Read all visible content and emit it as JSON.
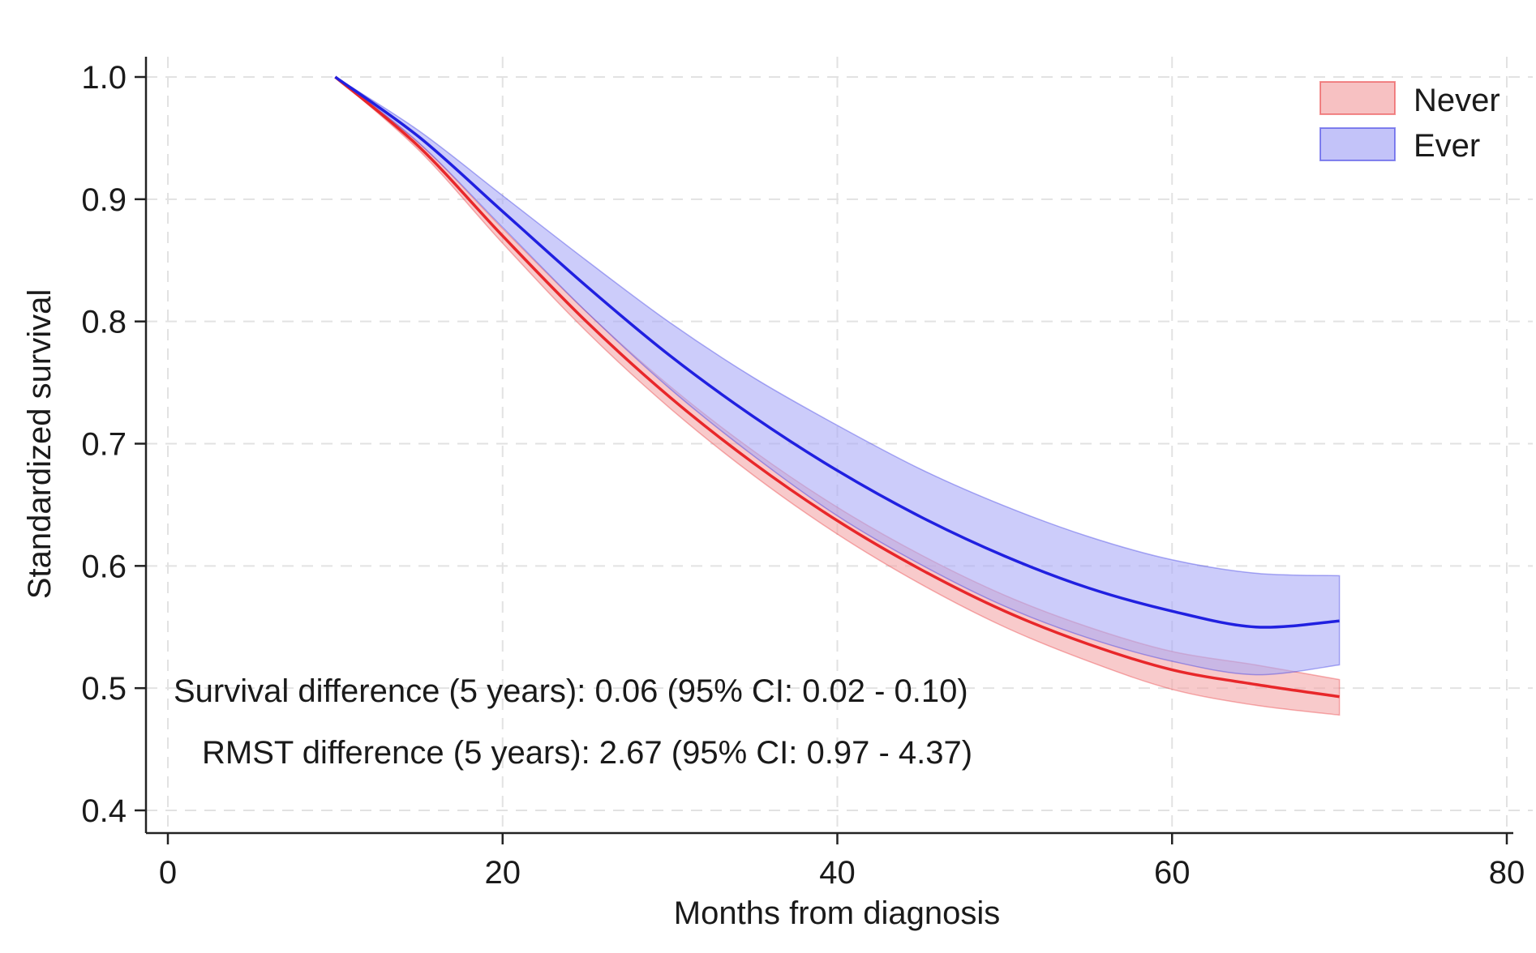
{
  "chart_data": {
    "type": "line",
    "title": "",
    "xlabel": "Months from diagnosis",
    "ylabel": "Standardized survival",
    "xlim": [
      0,
      80
    ],
    "ylim": [
      0.4,
      1.0
    ],
    "xticks": [
      0,
      20,
      40,
      60,
      80
    ],
    "yticks": [
      0.4,
      0.5,
      0.6,
      0.7,
      0.8,
      0.9,
      1.0
    ],
    "xtick_labels": [
      "0",
      "20",
      "40",
      "60",
      "80"
    ],
    "ytick_labels": [
      "0.4",
      "0.5",
      "0.6",
      "0.7",
      "0.8",
      "0.9",
      "1.0"
    ],
    "grid": true,
    "legend_position": "top-right",
    "x": [
      10,
      15,
      20,
      25,
      30,
      35,
      40,
      45,
      50,
      55,
      60,
      65,
      70
    ],
    "series": [
      {
        "name": "Never",
        "color": "#e8272a",
        "band_color": "#f4a6a8",
        "values": [
          1.0,
          0.943,
          0.87,
          0.8,
          0.738,
          0.684,
          0.637,
          0.597,
          0.563,
          0.536,
          0.515,
          0.503,
          0.493
        ],
        "lower": [
          1.0,
          0.94,
          0.864,
          0.792,
          0.729,
          0.674,
          0.626,
          0.585,
          0.55,
          0.522,
          0.499,
          0.486,
          0.478
        ],
        "upper": [
          1.0,
          0.946,
          0.876,
          0.808,
          0.747,
          0.694,
          0.648,
          0.609,
          0.576,
          0.55,
          0.53,
          0.519,
          0.507
        ]
      },
      {
        "name": "Ever",
        "color": "#2020e0",
        "band_color": "#aaaaf6",
        "values": [
          1.0,
          0.951,
          0.89,
          0.829,
          0.772,
          0.722,
          0.678,
          0.64,
          0.608,
          0.582,
          0.563,
          0.55,
          0.555
        ],
        "lower": [
          1.0,
          0.946,
          0.877,
          0.808,
          0.745,
          0.69,
          0.641,
          0.601,
          0.567,
          0.541,
          0.522,
          0.511,
          0.519
        ],
        "upper": [
          1.0,
          0.956,
          0.903,
          0.85,
          0.799,
          0.754,
          0.715,
          0.679,
          0.649,
          0.624,
          0.605,
          0.594,
          0.592
        ]
      }
    ],
    "annotations": [
      "Survival difference (5 years): 0.06 (95% CI: 0.02 - 0.10)",
      "RMST difference (5 years): 2.67 (95% CI: 0.97 - 4.37)"
    ]
  }
}
